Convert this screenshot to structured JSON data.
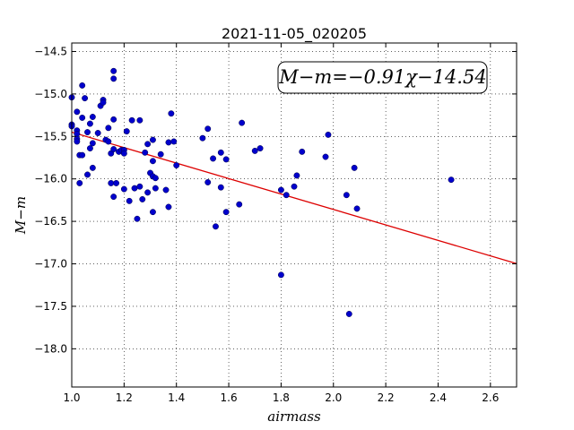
{
  "chart_data": {
    "type": "scatter",
    "title": "2021-11-05_020205",
    "xlabel": "airmass",
    "ylabel": "M−m",
    "xlim": [
      1.0,
      2.7
    ],
    "ylim": [
      -14.4,
      -18.45
    ],
    "y_inverted": true,
    "grid": true,
    "x_ticks": [
      "1.0",
      "1.2",
      "1.4",
      "1.6",
      "1.8",
      "2.0",
      "2.2",
      "2.4",
      "2.6"
    ],
    "y_ticks": [
      "−14.5",
      "−15.0",
      "−15.5",
      "−16.0",
      "−16.5",
      "−17.0",
      "−17.5",
      "−18.0"
    ],
    "annotation": "M−m=−0.91χ−14.54",
    "fit_line": {
      "slope": -0.91,
      "intercept": -14.54,
      "color": "#dd0000"
    },
    "point_color": "#0000cc",
    "points": [
      [
        1.0,
        -15.04
      ],
      [
        1.0,
        -15.36
      ],
      [
        1.0,
        -15.38
      ],
      [
        1.02,
        -15.43
      ],
      [
        1.02,
        -15.47
      ],
      [
        1.02,
        -15.53
      ],
      [
        1.02,
        -15.56
      ],
      [
        1.02,
        -15.21
      ],
      [
        1.03,
        -16.05
      ],
      [
        1.03,
        -15.72
      ],
      [
        1.04,
        -14.9
      ],
      [
        1.04,
        -15.28
      ],
      [
        1.04,
        -15.72
      ],
      [
        1.05,
        -15.05
      ],
      [
        1.06,
        -15.45
      ],
      [
        1.06,
        -15.95
      ],
      [
        1.07,
        -15.35
      ],
      [
        1.07,
        -15.64
      ],
      [
        1.08,
        -15.58
      ],
      [
        1.08,
        -15.27
      ],
      [
        1.08,
        -15.87
      ],
      [
        1.1,
        -15.46
      ],
      [
        1.11,
        -15.14
      ],
      [
        1.12,
        -15.07
      ],
      [
        1.12,
        -15.1
      ],
      [
        1.13,
        -15.54
      ],
      [
        1.14,
        -15.56
      ],
      [
        1.14,
        -15.4
      ],
      [
        1.15,
        -16.05
      ],
      [
        1.15,
        -15.7
      ],
      [
        1.16,
        -15.65
      ],
      [
        1.16,
        -16.21
      ],
      [
        1.16,
        -15.3
      ],
      [
        1.16,
        -14.73
      ],
      [
        1.16,
        -14.82
      ],
      [
        1.17,
        -16.05
      ],
      [
        1.18,
        -15.68
      ],
      [
        1.19,
        -15.66
      ],
      [
        1.2,
        -15.66
      ],
      [
        1.2,
        -15.7
      ],
      [
        1.2,
        -16.12
      ],
      [
        1.21,
        -15.44
      ],
      [
        1.22,
        -16.26
      ],
      [
        1.23,
        -15.31
      ],
      [
        1.24,
        -16.11
      ],
      [
        1.25,
        -16.47
      ],
      [
        1.26,
        -15.31
      ],
      [
        1.26,
        -16.09
      ],
      [
        1.27,
        -16.24
      ],
      [
        1.28,
        -15.69
      ],
      [
        1.29,
        -15.59
      ],
      [
        1.29,
        -16.16
      ],
      [
        1.3,
        -15.93
      ],
      [
        1.31,
        -15.54
      ],
      [
        1.31,
        -15.97
      ],
      [
        1.31,
        -16.39
      ],
      [
        1.31,
        -15.79
      ],
      [
        1.32,
        -15.99
      ],
      [
        1.32,
        -16.11
      ],
      [
        1.34,
        -15.71
      ],
      [
        1.36,
        -16.13
      ],
      [
        1.37,
        -16.33
      ],
      [
        1.37,
        -15.57
      ],
      [
        1.38,
        -15.23
      ],
      [
        1.39,
        -15.56
      ],
      [
        1.4,
        -15.84
      ],
      [
        1.5,
        -15.52
      ],
      [
        1.52,
        -16.04
      ],
      [
        1.52,
        -15.41
      ],
      [
        1.54,
        -15.76
      ],
      [
        1.55,
        -16.56
      ],
      [
        1.57,
        -16.1
      ],
      [
        1.57,
        -15.69
      ],
      [
        1.59,
        -15.77
      ],
      [
        1.59,
        -16.39
      ],
      [
        1.64,
        -16.3
      ],
      [
        1.65,
        -15.34
      ],
      [
        1.7,
        -15.67
      ],
      [
        1.72,
        -15.64
      ],
      [
        1.8,
        -16.13
      ],
      [
        1.8,
        -17.13
      ],
      [
        1.82,
        -16.19
      ],
      [
        1.85,
        -16.09
      ],
      [
        1.86,
        -15.96
      ],
      [
        1.88,
        -15.68
      ],
      [
        1.97,
        -15.74
      ],
      [
        1.98,
        -15.48
      ],
      [
        2.05,
        -16.19
      ],
      [
        2.06,
        -17.59
      ],
      [
        2.08,
        -15.87
      ],
      [
        2.09,
        -16.35
      ],
      [
        2.45,
        -16.01
      ]
    ]
  }
}
